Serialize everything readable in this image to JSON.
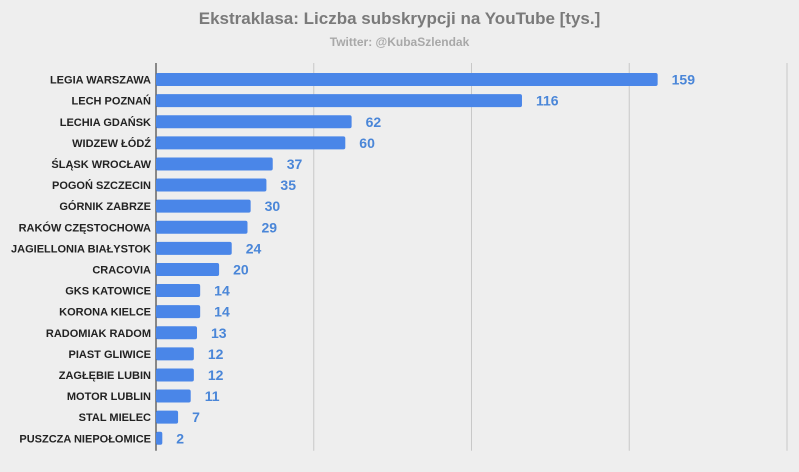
{
  "chart_data": {
    "type": "bar",
    "orientation": "horizontal",
    "title": "Ekstraklasa: Liczba subskrypcji na YouTube [tys.]",
    "subtitle": "Twitter: @KubaSzlendak",
    "categories": [
      "LEGIA WARSZAWA",
      "LECH POZNAŃ",
      "LECHIA GDAŃSK",
      "WIDZEW ŁÓDŹ",
      "ŚLĄSK WROCŁAW",
      "POGOŃ SZCZECIN",
      "GÓRNIK ZABRZE",
      "RAKÓW CZĘSTOCHOWA",
      "JAGIELLONIA BIAŁYSTOK",
      "CRACOVIA",
      "GKS KATOWICE",
      "KORONA KIELCE",
      "RADOMIAK RADOM",
      "PIAST GLIWICE",
      "ZAGŁĘBIE LUBIN",
      "MOTOR LUBLIN",
      "STAL MIELEC",
      "PUSZCZA NIEPOŁOMICE"
    ],
    "values": [
      159,
      116,
      62,
      60,
      37,
      35,
      30,
      29,
      24,
      20,
      14,
      14,
      13,
      12,
      12,
      11,
      7,
      2
    ],
    "xlim": [
      0,
      200
    ],
    "gridlines": [
      0,
      50,
      100,
      150,
      200
    ],
    "grid": true,
    "legend": "none",
    "bar_color": "#4a86e8",
    "label_color": "#4a86d8"
  }
}
